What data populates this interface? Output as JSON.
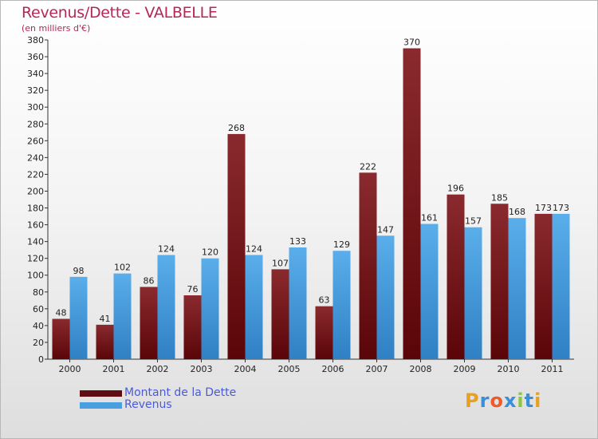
{
  "chart_data": {
    "type": "bar",
    "title": "Revenus/Dette - VALBELLE",
    "subtitle": "(en milliers d'€)",
    "categories": [
      "2000",
      "2001",
      "2002",
      "2003",
      "2004",
      "2005",
      "2006",
      "2007",
      "2008",
      "2009",
      "2010",
      "2011"
    ],
    "series": [
      {
        "name": "Montant de la Dette",
        "values": [
          48,
          41,
          86,
          76,
          268,
          107,
          63,
          222,
          370,
          196,
          185,
          173
        ],
        "color": "#7a1a1e"
      },
      {
        "name": "Revenus",
        "values": [
          98,
          102,
          124,
          120,
          124,
          133,
          129,
          147,
          161,
          157,
          168,
          173
        ],
        "color": "#4a9fe0"
      }
    ],
    "ylim": [
      0,
      380
    ],
    "yticks": [
      0,
      20,
      40,
      60,
      80,
      100,
      120,
      140,
      160,
      180,
      200,
      220,
      240,
      260,
      280,
      300,
      320,
      340,
      360,
      380
    ],
    "grid": false,
    "legend_position": "bottom-left"
  },
  "logo": {
    "text": "Proxiti",
    "colors": [
      "#e8a020",
      "#3a8fd6",
      "#f05a28",
      "#3a8fd6",
      "#8cc63f",
      "#3a8fd6",
      "#e8a020"
    ]
  }
}
